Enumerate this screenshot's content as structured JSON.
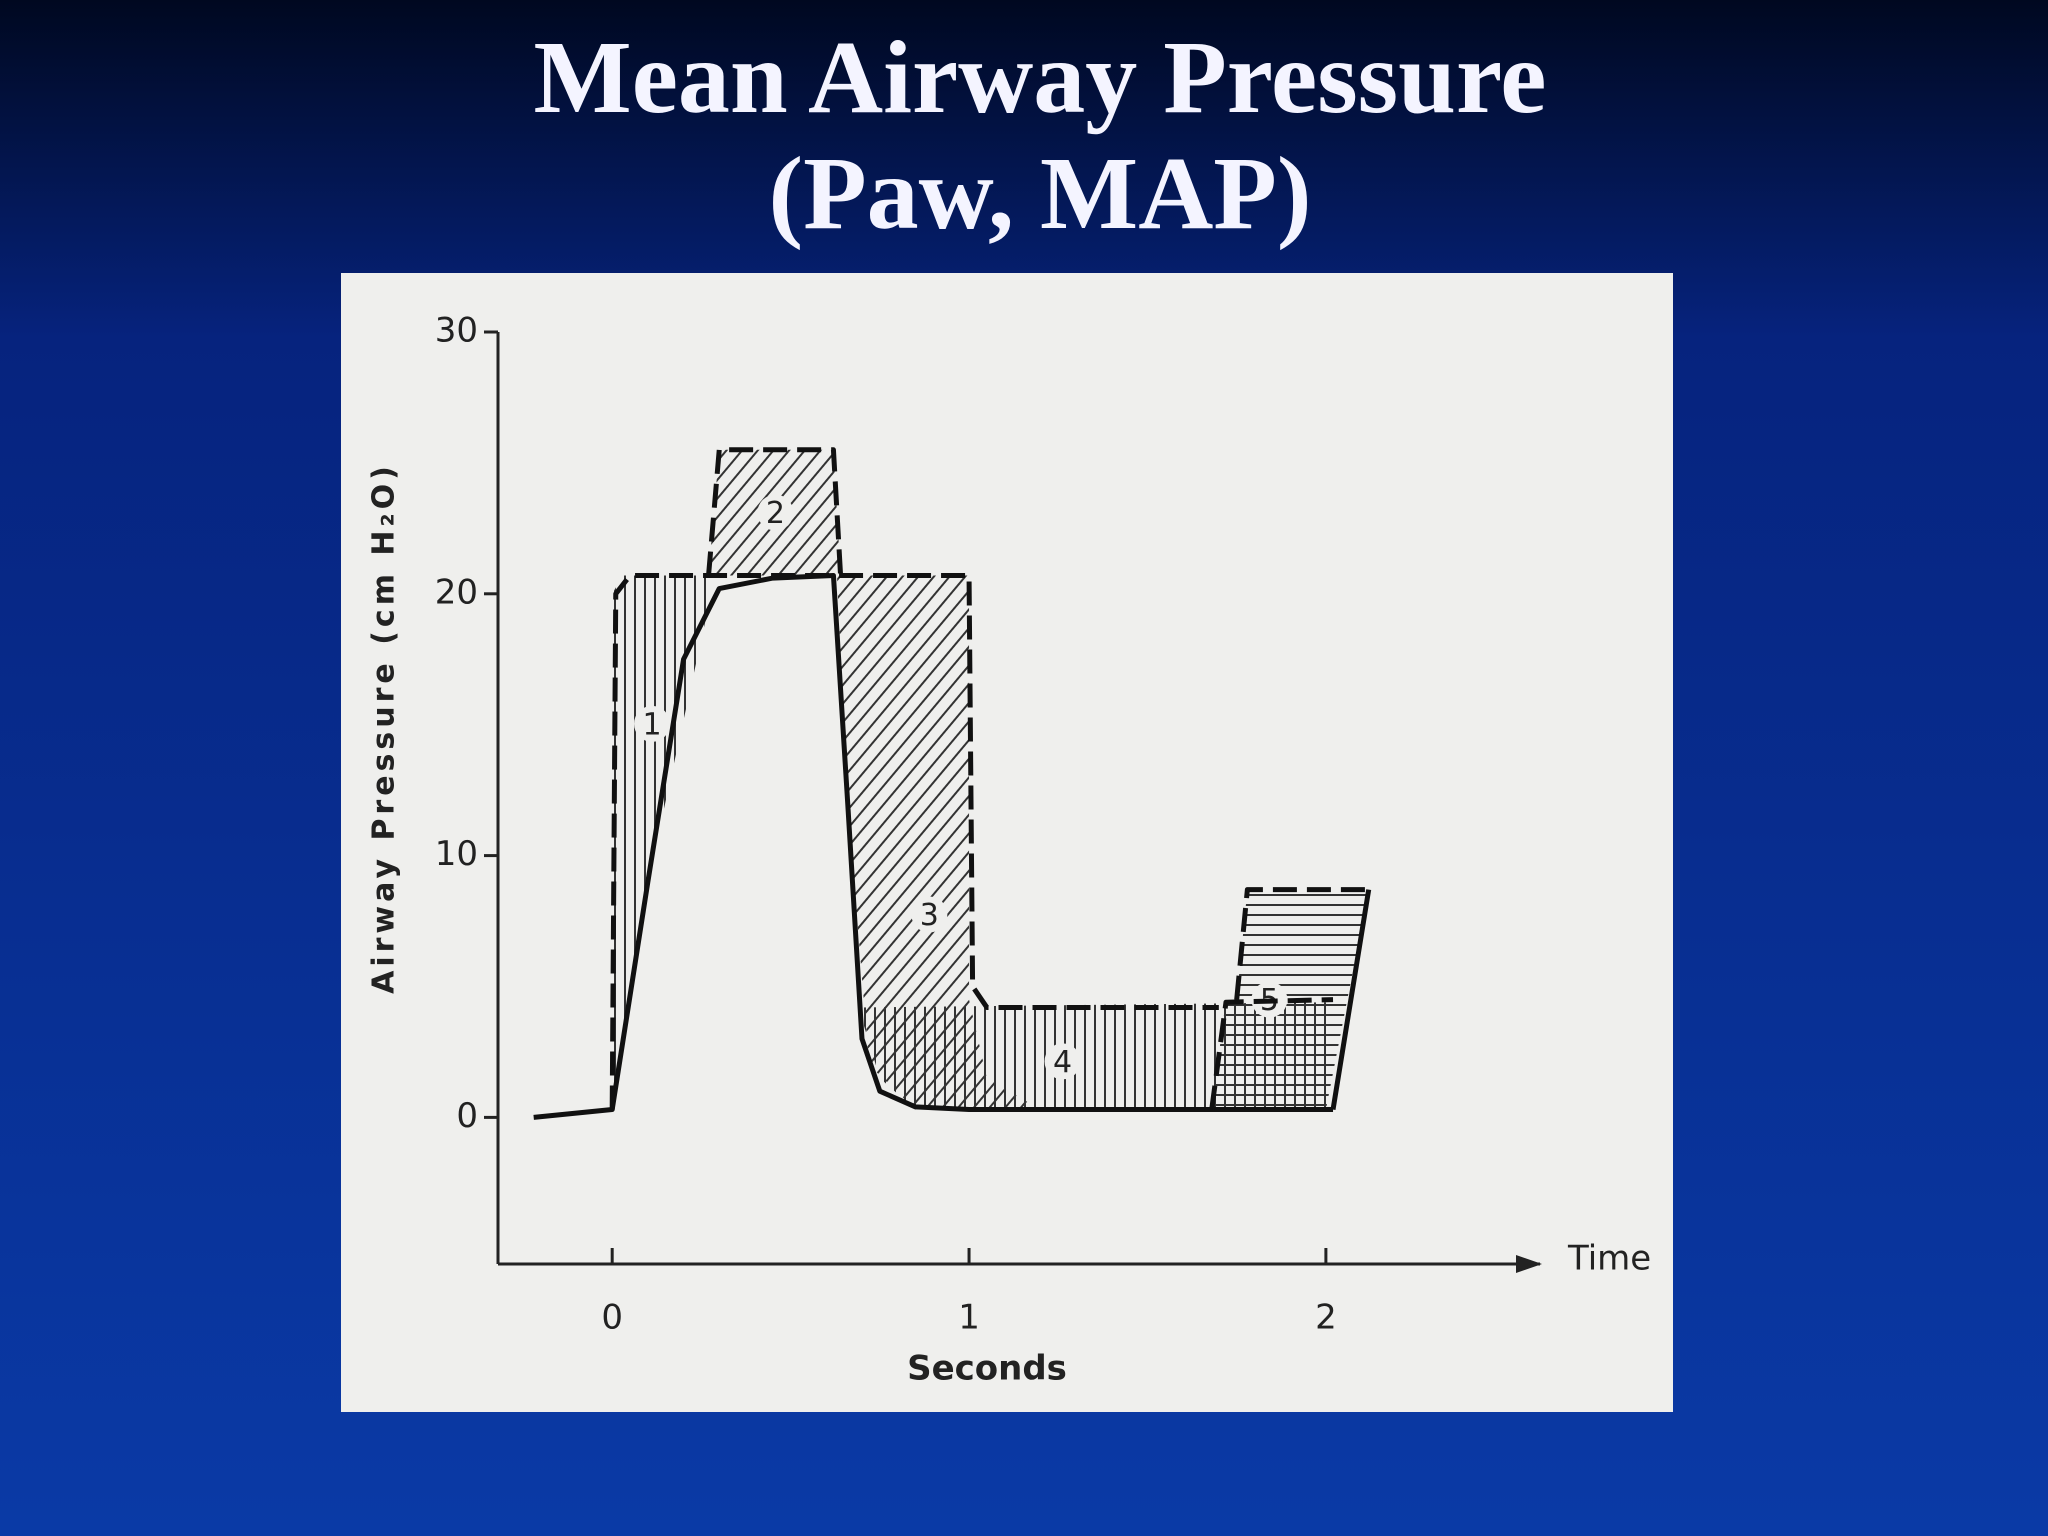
{
  "chart_data": {
    "type": "line",
    "title": [
      "Mean Airway Pressure",
      "(Paw, MAP)"
    ],
    "ylabel": "Airway Pressure (cm H₂O)",
    "xlabel": "Seconds",
    "x_arrow_label": "Time",
    "xlim": [
      -0.32,
      2.6
    ],
    "ylim": [
      -5.6,
      30
    ],
    "xticks": [
      0,
      1,
      2
    ],
    "yticks": [
      0,
      10,
      20,
      30
    ],
    "grid": false,
    "series": [
      {
        "color": "#111111",
        "dashed": false,
        "x": [
          -0.22,
          0,
          0.1,
          0.2,
          0.3,
          0.45,
          0.62,
          0.66,
          0.7,
          0.75,
          0.85,
          1.0,
          2.02,
          null,
          2.12,
          2.02
        ],
        "values": [
          0,
          0.3,
          9,
          17.5,
          20.2,
          20.6,
          20.7,
          12,
          3,
          1,
          0.4,
          0.3,
          0.3,
          null,
          8.7,
          0.3
        ]
      },
      {
        "color": "#111111",
        "dashed": true,
        "x": [
          0,
          0.01,
          0.05,
          1.0,
          1.01,
          1.05,
          1.7,
          null,
          0.27,
          0.3,
          0.62,
          0.64,
          null,
          1.68,
          1.72,
          2.02,
          null,
          1.75,
          1.78,
          2.12
        ],
        "values": [
          0.3,
          20,
          20.7,
          20.7,
          5,
          4.2,
          4.2,
          null,
          20.7,
          25.5,
          25.5,
          20.7,
          null,
          0.3,
          4.4,
          4.5,
          null,
          4.5,
          8.7,
          8.7
        ]
      }
    ],
    "regions": [
      {
        "label": "1",
        "hatch": "vertical",
        "x": [
          0,
          0,
          0.03,
          0.27,
          0.27,
          0.1
        ],
        "values": [
          0.3,
          20,
          20.7,
          20.7,
          19.5,
          9
        ]
      },
      {
        "label": "2",
        "hatch": "diagonal",
        "x": [
          0.27,
          0.3,
          0.62,
          0.64
        ],
        "values": [
          20.7,
          25.5,
          25.5,
          20.7
        ]
      },
      {
        "label": "3",
        "hatch": "diagonal",
        "x": [
          0.63,
          1.0,
          1.0,
          1.05,
          1.2,
          0.85,
          0.72,
          0.66
        ],
        "values": [
          20.7,
          20.7,
          4.5,
          1.5,
          0.3,
          0.3,
          2,
          12
        ]
      },
      {
        "label": "4",
        "hatch": "vertical",
        "x": [
          0.69,
          2.02,
          2.0,
          0.85,
          0.75
        ],
        "values": [
          4.2,
          4.4,
          0.3,
          0.3,
          1.5
        ]
      },
      {
        "label": "5",
        "hatch": "horizontal",
        "x": [
          1.75,
          1.78,
          2.12,
          2.0,
          1.68,
          1.72
        ],
        "values": [
          4.5,
          8.7,
          8.7,
          0.3,
          0.3,
          4.5
        ]
      }
    ]
  }
}
